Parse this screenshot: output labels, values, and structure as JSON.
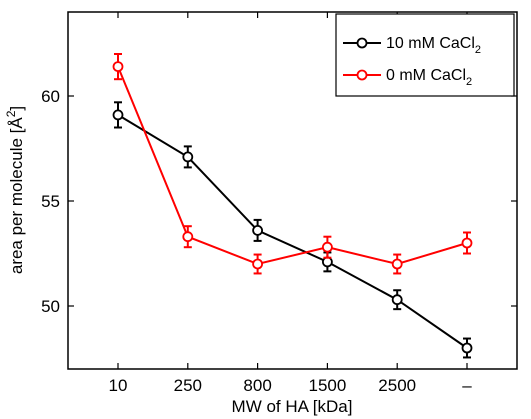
{
  "chart_data": {
    "type": "line",
    "categories": [
      "10",
      "250",
      "800",
      "1500",
      "2500",
      "–"
    ],
    "xlabel": "MW of HA [kDa]",
    "ylabel": "area per molecule [Å²]",
    "ylabel_parts": {
      "main": "area per molecule [",
      "unit": "Å",
      "sup": "2",
      "close": "]"
    },
    "ylim": [
      47,
      64
    ],
    "yticks": [
      50,
      55,
      60
    ],
    "grid": false,
    "legend_position": "top-right",
    "series": [
      {
        "name": "10 mM CaCl2",
        "label_main": "10 mM CaCl",
        "label_sub": "2",
        "color": "#000000",
        "marker": "open-circle",
        "values": [
          59.1,
          57.1,
          53.6,
          52.1,
          50.3,
          48.0
        ],
        "errors": [
          0.6,
          0.5,
          0.5,
          0.45,
          0.45,
          0.45
        ]
      },
      {
        "name": "0 mM CaCl2",
        "label_main": "0 mM CaCl",
        "label_sub": "2",
        "color": "#ff0000",
        "marker": "open-circle",
        "values": [
          61.4,
          53.3,
          52.0,
          52.8,
          52.0,
          53.0
        ],
        "errors": [
          0.6,
          0.5,
          0.45,
          0.5,
          0.45,
          0.5
        ]
      }
    ]
  }
}
